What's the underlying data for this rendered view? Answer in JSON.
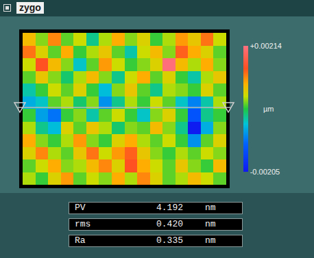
{
  "header": {
    "logo": "zygo"
  },
  "chart_data": {
    "type": "heatmap",
    "z": [
      [
        0.0008,
        0.0003,
        0.0011,
        0.0002,
        0.0005,
        -0.0002,
        0.0004,
        0.0009,
        0.0003,
        0.0006,
        0.0001,
        0.0004,
        0.001,
        0.0007,
        0.0012,
        0.0005
      ],
      [
        0.0012,
        0.0006,
        0.0002,
        0.0009,
        0.0001,
        0.0004,
        0.0007,
        0.0002,
        -0.0003,
        0.0005,
        0.0008,
        0.0003,
        0.0013,
        0.0009,
        0.0006,
        0.0002
      ],
      [
        0.0005,
        0.0014,
        0.0008,
        0.0003,
        -0.0004,
        0.0002,
        0.001,
        0.0005,
        0.0001,
        0.0003,
        0.0006,
        0.0021,
        0.0008,
        0.0004,
        0.0009,
        0.0003
      ],
      [
        0.0002,
        0.0007,
        0.0003,
        -0.0001,
        0.0004,
        0.0008,
        0.0003,
        -0.0002,
        0.0005,
        0.0009,
        0.0002,
        0.0006,
        0.0001,
        -0.0003,
        0.0004,
        0.0007
      ],
      [
        -0.0003,
        0.0001,
        0.0005,
        0.0002,
        0.0006,
        0.0001,
        -0.0005,
        0.0003,
        0.0007,
        0.0002,
        -0.0002,
        0.0004,
        0.0003,
        0.0001,
        0.0006,
        0.0002
      ],
      [
        -0.0006,
        -0.0004,
        0.0002,
        0.0004,
        -0.0001,
        0.0003,
        -0.0008,
        -0.0002,
        0.0004,
        0.0001,
        0.0005,
        0.0002,
        -0.0004,
        -0.0009,
        -0.0003,
        0.0004
      ],
      [
        0.0001,
        -0.0007,
        -0.001,
        0.0001,
        0.0003,
        -0.0003,
        0.0002,
        0.0005,
        0.0001,
        -0.0004,
        0.0003,
        0.0006,
        0.0001,
        -0.0013,
        -0.0002,
        0.0001
      ],
      [
        0.0004,
        -0.0002,
        -0.0005,
        0.0006,
        0.0002,
        0.0007,
        0.0004,
        -0.0001,
        0.0003,
        0.0002,
        0.0008,
        0.0003,
        -0.0002,
        -0.002,
        -0.0006,
        0.0003
      ],
      [
        0.0009,
        0.0003,
        0.0001,
        0.0004,
        0.001,
        0.0003,
        0.0001,
        0.0006,
        0.0009,
        0.0004,
        0.0002,
        0.0005,
        0.0001,
        -0.0008,
        0.0002,
        0.0006
      ],
      [
        0.0006,
        0.0011,
        0.0004,
        0.0002,
        0.0007,
        0.0012,
        0.0005,
        0.001,
        0.0013,
        0.0007,
        0.0003,
        0.0001,
        0.0004,
        0.0002,
        0.0005,
        0.0003
      ],
      [
        0.0002,
        0.0005,
        0.0009,
        0.0003,
        0.0004,
        0.0008,
        0.0011,
        0.0006,
        0.0014,
        0.0009,
        0.0005,
        0.0002,
        0.0007,
        0.0003,
        0.0001,
        0.0008
      ],
      [
        0.0004,
        0.0001,
        0.0006,
        0.001,
        0.0002,
        0.0005,
        0.0003,
        0.0009,
        0.0004,
        0.0011,
        0.0006,
        0.0002,
        0.0004,
        0.0008,
        0.0005,
        0.0002
      ]
    ],
    "zlim": [
      -0.00205,
      0.00214
    ],
    "zticks": [
      {
        "value": 0.00214,
        "label": "+0.00214"
      },
      -0.00205
    ],
    "colorbar_title": "µm",
    "tick_labels": false
  },
  "results": [
    {
      "label": "PV",
      "value": "4.192",
      "unit": "nm"
    },
    {
      "label": "rms",
      "value": "0.420",
      "unit": "nm"
    },
    {
      "label": "Ra",
      "value": "0.335",
      "unit": "nm"
    }
  ]
}
